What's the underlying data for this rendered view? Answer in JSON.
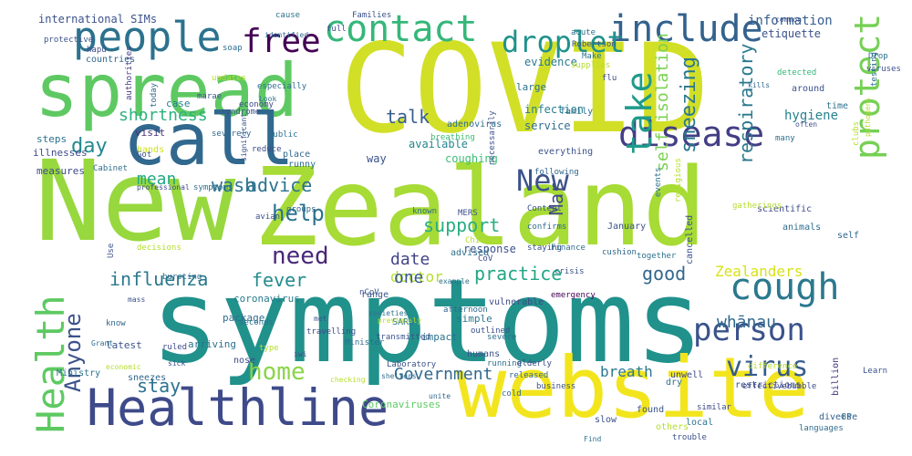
{
  "words": [
    {
      "text": "COVID",
      "color": "#d2df27"
    },
    {
      "text": "New",
      "color": "#97d83e"
    },
    {
      "text": "Zealand",
      "color": "#a7db35"
    },
    {
      "text": "symptoms",
      "color": "#21918c"
    },
    {
      "text": "website",
      "color": "#f2e51d"
    },
    {
      "text": "spread",
      "color": "#5ec962"
    },
    {
      "text": "call",
      "color": "#31688e"
    },
    {
      "text": "Healthline",
      "color": "#3e4a89"
    },
    {
      "text": "people",
      "color": "#2c728e"
    },
    {
      "text": "contact",
      "color": "#35b779"
    },
    {
      "text": "include",
      "color": "#33628d"
    },
    {
      "text": "droplet",
      "color": "#20928c"
    },
    {
      "text": "free",
      "color": "#440154"
    },
    {
      "text": "disease",
      "color": "#433e85"
    },
    {
      "text": "New",
      "color": "#3b528b"
    },
    {
      "text": "take",
      "color": "#1e9b8a"
    },
    {
      "text": "protect",
      "color": "#75d054"
    },
    {
      "text": "cough",
      "color": "#2a788e"
    },
    {
      "text": "person",
      "color": "#3b528b"
    },
    {
      "text": "virus",
      "color": "#365c8d"
    },
    {
      "text": "Health",
      "color": "#5ec962"
    },
    {
      "text": "need",
      "color": "#482878"
    },
    {
      "text": "help",
      "color": "#2c728e"
    },
    {
      "text": "home",
      "color": "#89d548"
    },
    {
      "text": "Anyone",
      "color": "#3b528b"
    },
    {
      "text": "influenza",
      "color": "#2a788e"
    },
    {
      "text": "fever",
      "color": "#228c8d"
    },
    {
      "text": "practice",
      "color": "#21a685"
    },
    {
      "text": "good",
      "color": "#31688e"
    },
    {
      "text": "Zealanders",
      "color": "#d8e219"
    },
    {
      "text": "whānau",
      "color": "#31688e"
    },
    {
      "text": "day",
      "color": "#23898e"
    },
    {
      "text": "shortness",
      "color": "#2db27d"
    },
    {
      "text": "mean",
      "color": "#22a884"
    },
    {
      "text": "wash",
      "color": "#2d708e"
    },
    {
      "text": "advice",
      "color": "#2c728e"
    },
    {
      "text": "support",
      "color": "#28ae80"
    },
    {
      "text": "Mar",
      "color": "#3f4788"
    },
    {
      "text": "date",
      "color": "#414487"
    },
    {
      "text": "doctor",
      "color": "#b5de2b"
    },
    {
      "text": "talk",
      "color": "#355f8d"
    },
    {
      "text": "sneezing",
      "color": "#2a768e"
    },
    {
      "text": "respiratory",
      "color": "#2a788e"
    },
    {
      "text": "self isolation",
      "color": "#7ad151"
    },
    {
      "text": "stay",
      "color": "#2c728e"
    },
    {
      "text": "one",
      "color": "#38598c"
    },
    {
      "text": "Government",
      "color": "#31688e"
    },
    {
      "text": "breath",
      "color": "#2a788e"
    },
    {
      "text": "information",
      "color": "#355e8d"
    },
    {
      "text": "etiquette",
      "color": "#3b528b"
    },
    {
      "text": "hygiene",
      "color": "#26828e"
    },
    {
      "text": "evidence",
      "color": "#29798e"
    },
    {
      "text": "infection",
      "color": "#277f8e"
    },
    {
      "text": "service",
      "color": "#2e6e8e"
    },
    {
      "text": "international SIMs",
      "color": "#3b528b"
    },
    {
      "text": "case",
      "color": "#26828e"
    },
    {
      "text": "illnesses",
      "color": "#3e4989"
    },
    {
      "text": "visit",
      "color": "#46337e"
    },
    {
      "text": "steps",
      "color": "#2c728e"
    },
    {
      "text": "measures",
      "color": "#3e4a89"
    },
    {
      "text": "countries",
      "color": "#31688e"
    },
    {
      "text": "authorities",
      "color": "#443a83"
    },
    {
      "text": "hands",
      "color": "#d0e11c"
    },
    {
      "text": "coughing",
      "color": "#3dbc74"
    },
    {
      "text": "large",
      "color": "#2c728e"
    },
    {
      "text": "way",
      "color": "#3b528b"
    },
    {
      "text": "place",
      "color": "#31688e"
    },
    {
      "text": "runny",
      "color": "#2e6e8e"
    },
    {
      "text": "available",
      "color": "#25858e"
    },
    {
      "text": "coronavirus",
      "color": "#287c8e"
    },
    {
      "text": "range",
      "color": "#38598c"
    },
    {
      "text": "response",
      "color": "#3b528b"
    },
    {
      "text": "SARS",
      "color": "#2c728e"
    },
    {
      "text": "package",
      "color": "#2e6e8e"
    },
    {
      "text": "impact",
      "color": "#2c728e"
    },
    {
      "text": "simple",
      "color": "#2a788e"
    },
    {
      "text": "latest",
      "color": "#3b528b"
    },
    {
      "text": "arriving",
      "color": "#2c728e"
    },
    {
      "text": "nose",
      "color": "#3e4a89"
    },
    {
      "text": "sneezes",
      "color": "#31688e"
    },
    {
      "text": "Coronaviruses",
      "color": "#5ec962"
    },
    {
      "text": "found",
      "color": "#3b528b"
    },
    {
      "text": "local",
      "color": "#2c728e"
    },
    {
      "text": "unwell",
      "color": "#3e4989"
    },
    {
      "text": "restrictions",
      "color": "#3b528b"
    },
    {
      "text": "billion",
      "color": "#46337e"
    },
    {
      "text": "GP",
      "color": "#2c728e"
    },
    {
      "text": "diverse",
      "color": "#355f8d"
    },
    {
      "text": "slow",
      "color": "#3b528b"
    },
    {
      "text": "others",
      "color": "#b5de2b"
    },
    {
      "text": "time",
      "color": "#2c728e"
    },
    {
      "text": "around",
      "color": "#3b528b"
    },
    {
      "text": "detected",
      "color": "#35b779"
    },
    {
      "text": "many",
      "color": "#2e6e8e"
    },
    {
      "text": "scientific",
      "color": "#3e4a89"
    },
    {
      "text": "January",
      "color": "#3b528b"
    },
    {
      "text": "events",
      "color": "#2c728e"
    },
    {
      "text": "cancelled",
      "color": "#3b528b"
    },
    {
      "text": "animals",
      "color": "#2e6e8e"
    },
    {
      "text": "self",
      "color": "#31688e"
    },
    {
      "text": "family",
      "color": "#2c728e"
    },
    {
      "text": "everything",
      "color": "#3b528b"
    },
    {
      "text": "breathing",
      "color": "#3dbc74"
    },
    {
      "text": "adenovirus",
      "color": "#2e6e8e"
    },
    {
      "text": "following",
      "color": "#31688e"
    },
    {
      "text": "necessarily",
      "color": "#3b528b"
    },
    {
      "text": "confirms",
      "color": "#2e6e8e"
    },
    {
      "text": "staying",
      "color": "#3b528b"
    },
    {
      "text": "cushion",
      "color": "#31688e"
    },
    {
      "text": "together",
      "color": "#2c728e"
    },
    {
      "text": "emergency",
      "color": "#440154"
    },
    {
      "text": "crisis",
      "color": "#3b528b"
    },
    {
      "text": "advised",
      "color": "#2c728e"
    },
    {
      "text": "vulnerable",
      "color": "#3e4a89"
    },
    {
      "text": "severe",
      "color": "#2e6e8e"
    },
    {
      "text": "humans",
      "color": "#3b528b"
    },
    {
      "text": "running",
      "color": "#2c728e"
    },
    {
      "text": "elderly",
      "color": "#3e4a89"
    },
    {
      "text": "outlined",
      "color": "#3b528b"
    },
    {
      "text": "cold",
      "color": "#2e6e8e"
    },
    {
      "text": "released",
      "color": "#31688e"
    },
    {
      "text": "business",
      "color": "#3b528b"
    },
    {
      "text": "dry",
      "color": "#2c728e"
    },
    {
      "text": "similar",
      "color": "#3e4a89"
    },
    {
      "text": "trouble",
      "color": "#3b528b"
    },
    {
      "text": "languages",
      "color": "#2e6e8e"
    },
    {
      "text": "Learn",
      "color": "#3b528b"
    },
    {
      "text": "Drop",
      "color": "#2c728e"
    },
    {
      "text": "viruses",
      "color": "#3b528b"
    },
    {
      "text": "testing",
      "color": "#2e6e8e"
    },
    {
      "text": "kills",
      "color": "#31688e"
    },
    {
      "text": "common",
      "color": "#3b528b"
    },
    {
      "text": "Robertson",
      "color": "#3b528b"
    },
    {
      "text": "Make",
      "color": "#2c728e"
    },
    {
      "text": "flu",
      "color": "#3e4a89"
    },
    {
      "text": "supplies",
      "color": "#b5de2b"
    },
    {
      "text": "acute",
      "color": "#2e6e8e"
    },
    {
      "text": "Families",
      "color": "#3b528b"
    },
    {
      "text": "cause",
      "color": "#2c728e"
    },
    {
      "text": "full",
      "color": "#3e4a89"
    },
    {
      "text": "identified",
      "color": "#31688e"
    },
    {
      "text": "protective",
      "color": "#3b528b"
    },
    {
      "text": "Ministry",
      "color": "#2c728e"
    },
    {
      "text": "hapū",
      "color": "#3e4a89"
    },
    {
      "text": "today",
      "color": "#31688e"
    },
    {
      "text": "soap",
      "color": "#2e6e8e"
    },
    {
      "text": "marae",
      "color": "#3b528b"
    },
    {
      "text": "Look",
      "color": "#2c728e"
    },
    {
      "text": "updates",
      "color": "#b5de2b"
    },
    {
      "text": "economy",
      "color": "#3e4a89"
    },
    {
      "text": "especially",
      "color": "#2e6e8e"
    },
    {
      "text": "syndrome",
      "color": "#3b528b"
    },
    {
      "text": "severely",
      "color": "#31688e"
    },
    {
      "text": "public",
      "color": "#2c728e"
    },
    {
      "text": "reduce",
      "color": "#3e4a89"
    },
    {
      "text": "Got",
      "color": "#3b528b"
    },
    {
      "text": "Cabinet",
      "color": "#2e6e8e"
    },
    {
      "text": "significant",
      "color": "#3b528b"
    },
    {
      "text": "symptoms",
      "color": "#2c728e"
    },
    {
      "text": "professional",
      "color": "#3e4a89"
    },
    {
      "text": "avian",
      "color": "#3b528b"
    },
    {
      "text": "groups",
      "color": "#31688e"
    },
    {
      "text": "known",
      "color": "#2e6e8e"
    },
    {
      "text": "MERS",
      "color": "#3b528b"
    },
    {
      "text": "example",
      "color": "#2c728e"
    },
    {
      "text": "CoV",
      "color": "#3e4a89"
    },
    {
      "text": "Chinese",
      "color": "#b5de2b"
    },
    {
      "text": "Content",
      "color": "#3b528b"
    },
    {
      "text": "Finance",
      "color": "#2e6e8e"
    },
    {
      "text": "nCoV",
      "color": "#3b528b"
    },
    {
      "text": "afternoon",
      "color": "#31688e"
    },
    {
      "text": "seconds",
      "color": "#2c728e"
    },
    {
      "text": "travelling",
      "color": "#3e4a89"
    },
    {
      "text": "decisions",
      "color": "#b5de2b"
    },
    {
      "text": "Use",
      "color": "#3b528b"
    },
    {
      "text": "bursting",
      "color": "#2e6e8e"
    },
    {
      "text": "mass",
      "color": "#3b528b"
    },
    {
      "text": "know",
      "color": "#31688e"
    },
    {
      "text": "Grant",
      "color": "#2c728e"
    },
    {
      "text": "economic",
      "color": "#b5de2b"
    },
    {
      "text": "ruled",
      "color": "#3e4a89"
    },
    {
      "text": "type",
      "color": "#b5de2b"
    },
    {
      "text": "sick",
      "color": "#3b528b"
    },
    {
      "text": "shelters",
      "color": "#2e6e8e"
    },
    {
      "text": "Laboratory",
      "color": "#3b528b"
    },
    {
      "text": "checking",
      "color": "#b5de2b"
    },
    {
      "text": "unite",
      "color": "#31688e"
    },
    {
      "text": "societies",
      "color": "#2c728e"
    },
    {
      "text": "iwi",
      "color": "#3e4a89"
    },
    {
      "text": "met",
      "color": "#3b528b"
    },
    {
      "text": "previously",
      "color": "#b5de2b"
    },
    {
      "text": "Minister",
      "color": "#2e6e8e"
    },
    {
      "text": "transmitted",
      "color": "#3b528b"
    },
    {
      "text": "Find",
      "color": "#2c728e"
    },
    {
      "text": "effectivebubble",
      "color": "#3e4a89"
    },
    {
      "text": "difference",
      "color": "#b5de2b"
    },
    {
      "text": "pathogens",
      "color": "#b5de2b"
    },
    {
      "text": "clubs",
      "color": "#b5de2b"
    },
    {
      "text": "often",
      "color": "#3b528b"
    },
    {
      "text": "gatherings",
      "color": "#b5de2b"
    },
    {
      "text": "religious",
      "color": "#b5de2b"
    }
  ]
}
